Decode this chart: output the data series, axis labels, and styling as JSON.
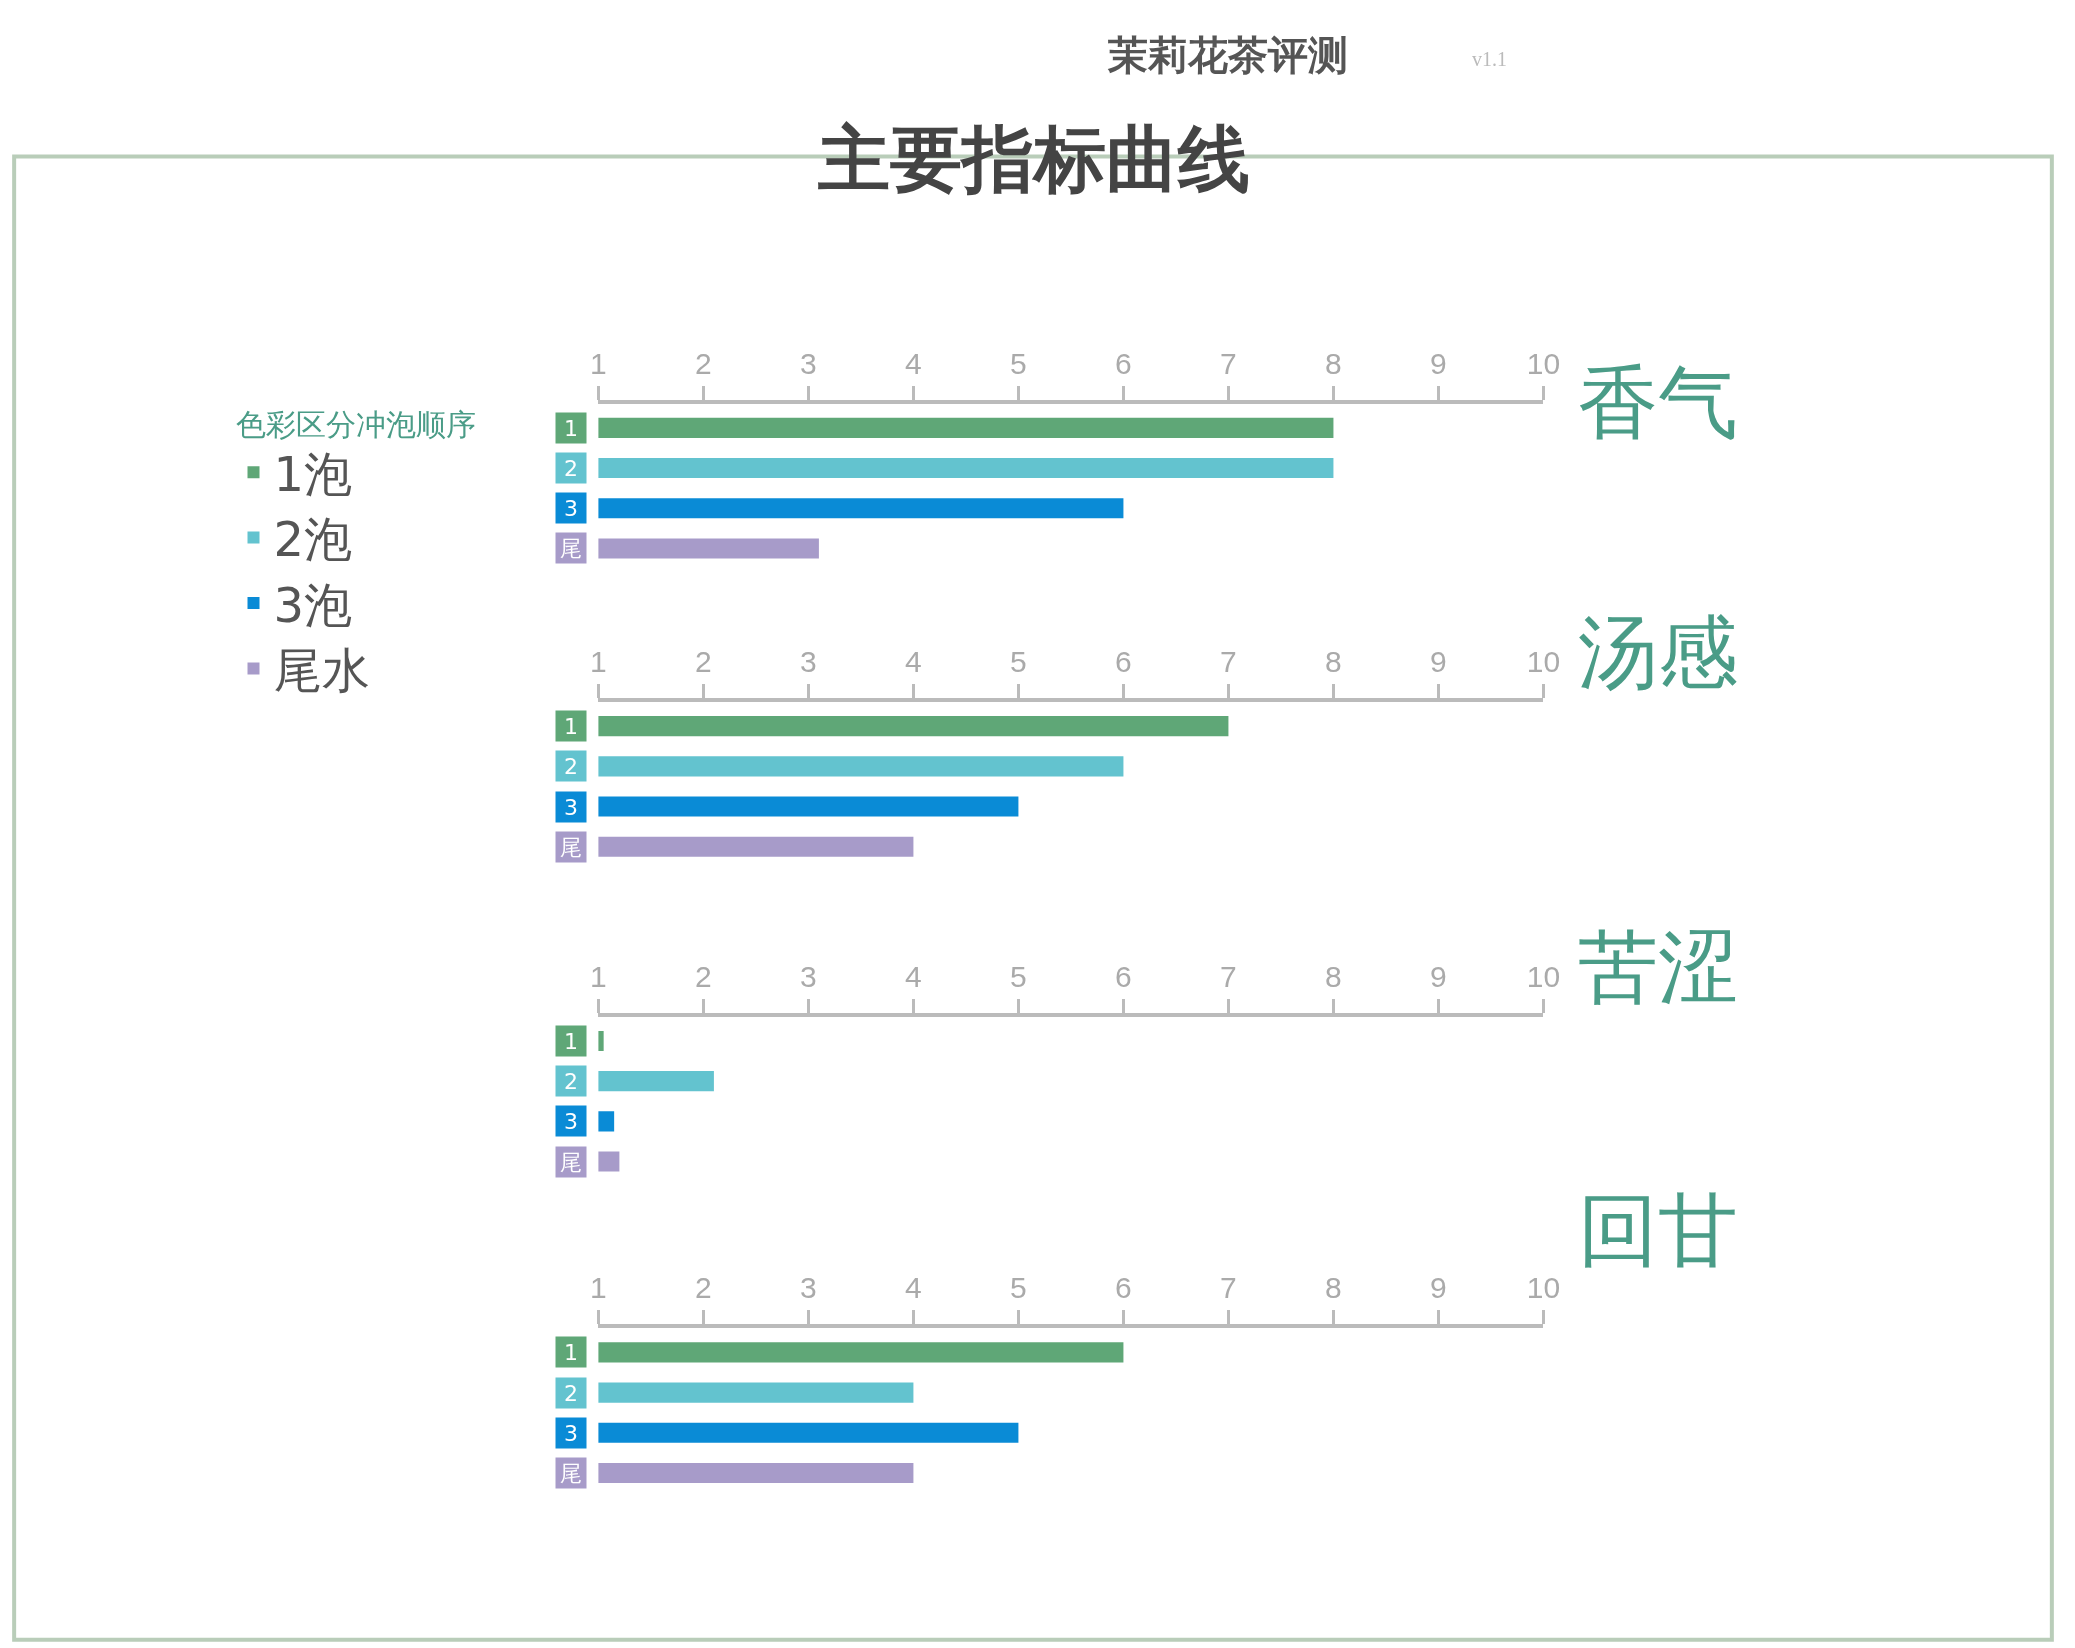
{
  "chart_data": [
    {
      "type": "other",
      "title": "主要指标曲线",
      "subtitle": "茉莉花茶评测",
      "annotations": [
        "v1.1"
      ]
    },
    {
      "type": "bar",
      "orientation": "horizontal",
      "title": "香气",
      "categories": [
        "1",
        "2",
        "3",
        "尾"
      ],
      "xlim": [
        1,
        10
      ],
      "xticks": [
        1,
        2,
        3,
        4,
        5,
        6,
        7,
        8,
        9,
        10
      ],
      "legend": "left",
      "legend_title": "色彩区分冲泡顺序",
      "series": [
        {
          "name": "1泡",
          "color": "#5fa777",
          "values": [
            8,
            null,
            null,
            null
          ]
        },
        {
          "name": "2泡",
          "color": "#63c3cf",
          "values": [
            null,
            8,
            null,
            null
          ]
        },
        {
          "name": "3泡",
          "color": "#0a8bd6",
          "values": [
            null,
            null,
            6,
            null
          ]
        },
        {
          "name": "尾水",
          "color": "#a79bc9",
          "values": [
            null,
            null,
            null,
            3.1
          ]
        }
      ]
    },
    {
      "type": "bar",
      "orientation": "horizontal",
      "title": "汤感",
      "categories": [
        "1",
        "2",
        "3",
        "尾"
      ],
      "xlim": [
        1,
        10
      ],
      "xticks": [
        1,
        2,
        3,
        4,
        5,
        6,
        7,
        8,
        9,
        10
      ],
      "series": [
        {
          "color": "#5fa777",
          "values": [
            7,
            null,
            null,
            null
          ]
        },
        {
          "color": "#63c3cf",
          "values": [
            null,
            6,
            null,
            null
          ]
        },
        {
          "color": "#0a8bd6",
          "values": [
            null,
            null,
            5,
            null
          ]
        },
        {
          "color": "#a79bc9",
          "values": [
            null,
            null,
            null,
            4
          ]
        }
      ]
    },
    {
      "type": "bar",
      "orientation": "horizontal",
      "title": "苦涩",
      "categories": [
        "1",
        "2",
        "3",
        "尾"
      ],
      "xlim": [
        1,
        10
      ],
      "xticks": [
        1,
        2,
        3,
        4,
        5,
        6,
        7,
        8,
        9,
        10
      ],
      "series": [
        {
          "color": "#5fa777",
          "values": [
            1.05,
            null,
            null,
            null
          ]
        },
        {
          "color": "#63c3cf",
          "values": [
            null,
            2.1,
            null,
            null
          ]
        },
        {
          "color": "#0a8bd6",
          "values": [
            null,
            null,
            1.15,
            null
          ]
        },
        {
          "color": "#a79bc9",
          "values": [
            null,
            null,
            null,
            1.2
          ]
        }
      ]
    },
    {
      "type": "bar",
      "orientation": "horizontal",
      "title": "回甘",
      "categories": [
        "1",
        "2",
        "3",
        "尾"
      ],
      "xlim": [
        1,
        10
      ],
      "xticks": [
        1,
        2,
        3,
        4,
        5,
        6,
        7,
        8,
        9,
        10
      ],
      "series": [
        {
          "color": "#5fa777",
          "values": [
            6,
            null,
            null,
            null
          ]
        },
        {
          "color": "#63c3cf",
          "values": [
            null,
            4,
            null,
            null
          ]
        },
        {
          "color": "#0a8bd6",
          "values": [
            null,
            null,
            5,
            null
          ]
        },
        {
          "color": "#a79bc9",
          "values": [
            null,
            null,
            null,
            4
          ]
        }
      ]
    }
  ]
}
